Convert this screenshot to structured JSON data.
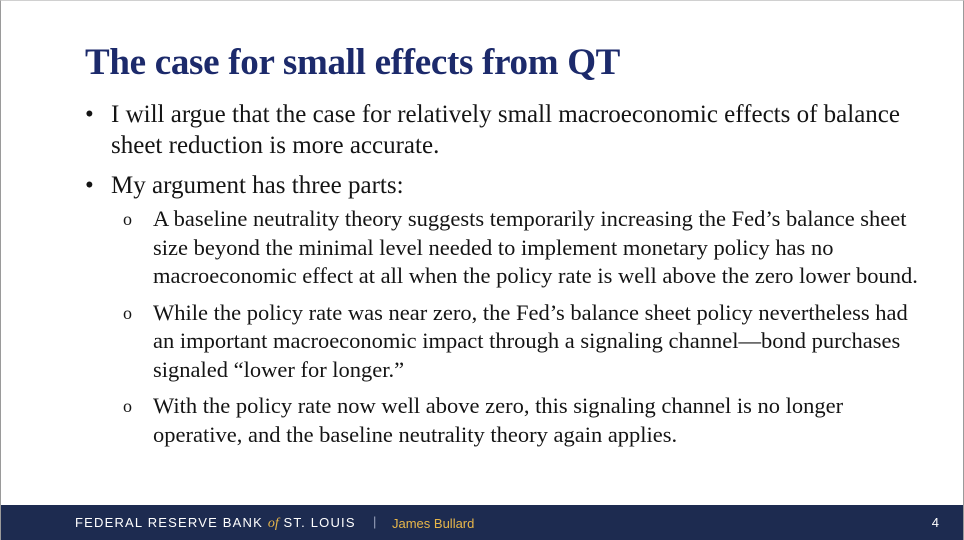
{
  "slide": {
    "title": "The case for small effects from QT",
    "bullets": [
      {
        "text": "I will argue that the case for relatively small macroeconomic effects of balance sheet reduction is more accurate.",
        "sub": []
      },
      {
        "text": "My argument has three parts:",
        "sub": [
          "A baseline neutrality theory suggests temporarily increasing the Fed’s balance sheet size beyond the minimal level needed to implement monetary policy has no macroeconomic effect at all when the policy rate is well above the zero lower bound.",
          "While the policy rate was near zero, the Fed’s balance sheet policy nevertheless had an important macroeconomic impact through a signaling channel—bond purchases signaled “lower for longer.”",
          "With the policy rate now well above zero, this signaling channel is no longer operative, and the baseline neutrality theory again applies."
        ]
      }
    ],
    "bullet_glyph": "•",
    "sub_bullet_glyph": "o"
  },
  "footer": {
    "org_part1": "FEDERAL RESERVE BANK ",
    "org_of": "of",
    "org_part2": " ST. LOUIS",
    "separator": "|",
    "author": "James Bullard",
    "page_number": "4"
  },
  "colors": {
    "title": "#1c2a6b",
    "footer_bg": "#1d2b50",
    "footer_accent": "#e8b64a"
  }
}
